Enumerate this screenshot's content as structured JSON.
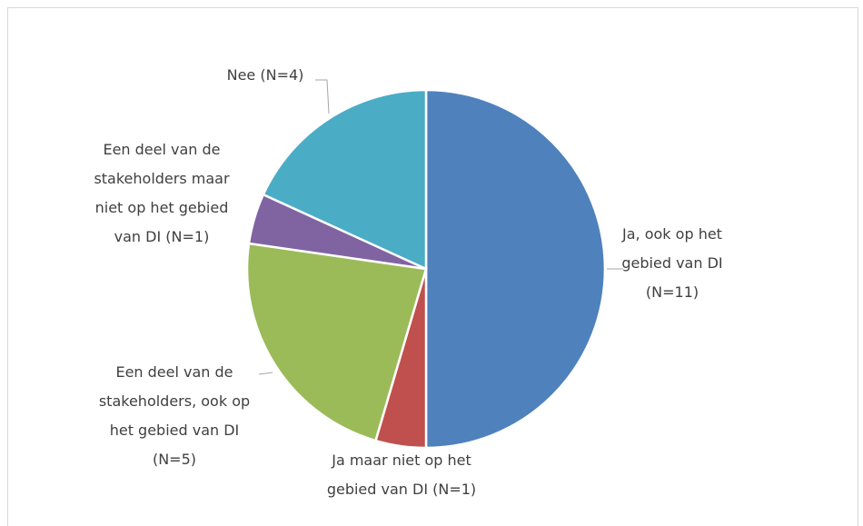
{
  "chart_data": {
    "type": "pie",
    "categories": [
      "Ja, ook op het gebied van DI (N=11)",
      "Ja maar niet op het gebied van DI (N=1)",
      "Een deel van de stakeholders, ook op het gebied van DI (N=5)",
      "Een deel van de stakeholders maar niet op het gebied van DI (N=1)",
      "Nee (N=4)"
    ],
    "values": [
      11,
      1,
      5,
      1,
      4
    ],
    "colors": [
      "#4f81bd",
      "#c0504d",
      "#9bbb59",
      "#8064a2",
      "#4bacc6"
    ]
  }
}
